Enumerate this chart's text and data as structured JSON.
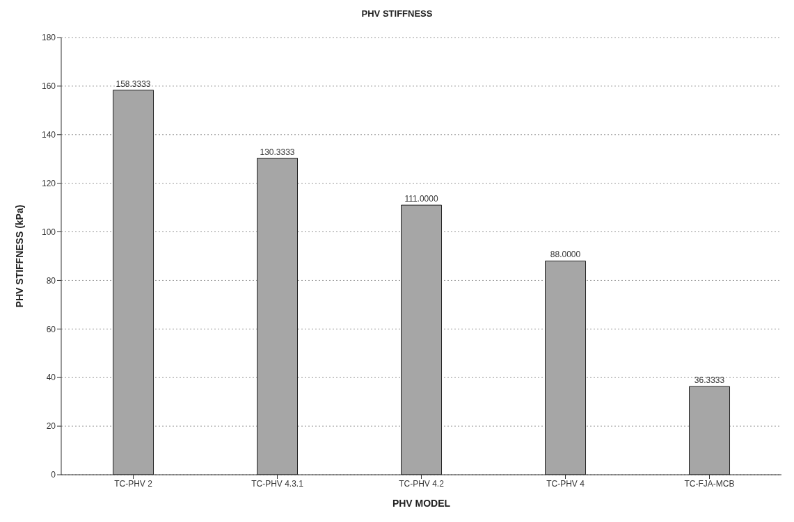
{
  "chart_data": {
    "type": "bar",
    "title": "PHV STIFFNESS",
    "xlabel": "PHV MODEL",
    "ylabel": "PHV STIFFNESS (kPa)",
    "categories": [
      "TC-PHV 2",
      "TC-PHV 4.3.1",
      "TC-PHV 4.2",
      "TC-PHV 4",
      "TC-FJA-MCB"
    ],
    "values": [
      158.3333,
      130.3333,
      111,
      88,
      36.3333
    ],
    "value_labels": [
      "158.3333",
      "130.3333",
      "111.0000",
      "88.0000",
      "36.3333"
    ],
    "color": "#a6a6a6",
    "ylim": [
      0,
      180
    ],
    "yticks": [
      0,
      20,
      40,
      60,
      80,
      100,
      120,
      140,
      160,
      180
    ],
    "grid": "y",
    "legend": false
  }
}
